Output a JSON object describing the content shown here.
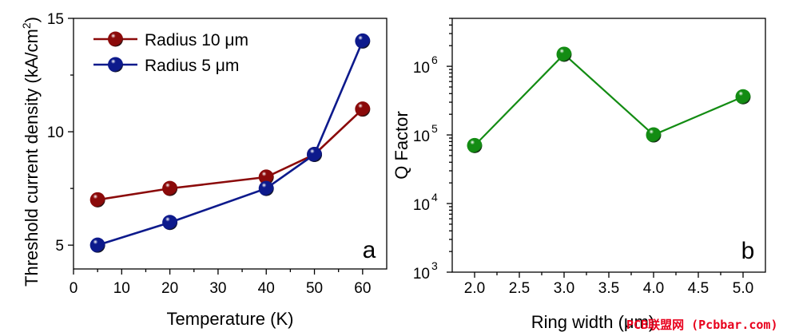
{
  "chart_data": [
    {
      "type": "line",
      "panel_label": "a",
      "xlabel": "Temperature (K)",
      "ylabel": "Threshold current density",
      "ylabel_unit_base": "(kA/cm",
      "ylabel_unit_sup": "2",
      "ylabel_unit_close": ")",
      "xlim": [
        0,
        65
      ],
      "ylim": [
        3.95,
        15
      ],
      "xticks": [
        0,
        10,
        20,
        30,
        40,
        50,
        60
      ],
      "yticks": [
        5,
        10,
        15
      ],
      "legend_position": "top-left",
      "grid": false,
      "series": [
        {
          "name": "Radius 10 μm",
          "color": "#8b0a0a",
          "x": [
            5,
            20,
            40,
            50,
            60
          ],
          "y": [
            7,
            7.5,
            8,
            9,
            11
          ]
        },
        {
          "name": "Radius 5 μm",
          "color": "#0d1a8c",
          "x": [
            5,
            20,
            40,
            50,
            60
          ],
          "y": [
            5,
            6,
            7.5,
            9,
            14
          ]
        }
      ]
    },
    {
      "type": "line",
      "panel_label": "b",
      "xlabel": "Ring width (μm)",
      "ylabel": "Q Factor",
      "yscale": "log",
      "xlim": [
        1.75,
        5.25
      ],
      "ylim": [
        1000,
        5000000
      ],
      "xticks": [
        2.0,
        2.5,
        3.0,
        3.5,
        4.0,
        4.5,
        5.0
      ],
      "xtick_labels": [
        "2.0",
        "2.5",
        "3.0",
        "3.5",
        "4.0",
        "4.5",
        "5.0"
      ],
      "ytick_exponents": [
        3,
        4,
        5,
        6
      ],
      "ytick_base": "10",
      "grid": false,
      "series": [
        {
          "color": "#138c13",
          "x": [
            2.0,
            3.0,
            4.0,
            5.0
          ],
          "y": [
            70000,
            1500000,
            100000,
            360000
          ]
        }
      ]
    }
  ],
  "watermark": "PCB联盟网 (Pcbbar.com)"
}
